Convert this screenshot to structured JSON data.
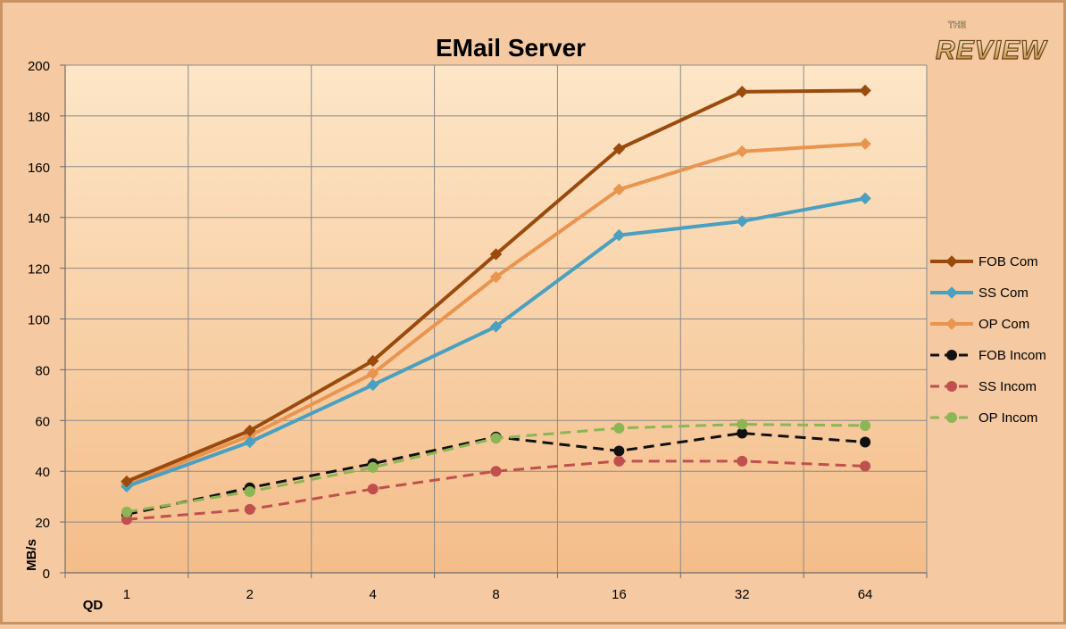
{
  "logo": {
    "top": "THE",
    "main": "REVIEW"
  },
  "chart_data": {
    "type": "line",
    "title": "EMail Server",
    "xlabel": "QD",
    "ylabel": "MB/s",
    "categories": [
      "1",
      "2",
      "4",
      "8",
      "16",
      "32",
      "64"
    ],
    "ylim": [
      0,
      200
    ],
    "yticks": [
      0,
      20,
      40,
      60,
      80,
      100,
      120,
      140,
      160,
      180,
      200
    ],
    "grid": true,
    "legend_position": "right",
    "series": [
      {
        "name": "FOB Com",
        "values": [
          36,
          56,
          83.5,
          125.5,
          167,
          189.5,
          190
        ],
        "color": "#9a4a0c",
        "style": "solid",
        "marker": "diamond"
      },
      {
        "name": "SS Com",
        "values": [
          34,
          51.5,
          74,
          97,
          133,
          138.5,
          147.5
        ],
        "color": "#4aa0c0",
        "style": "solid",
        "marker": "diamond"
      },
      {
        "name": "OP Com",
        "values": [
          35,
          54,
          78.5,
          116.5,
          151,
          166,
          169
        ],
        "color": "#e9944f",
        "style": "solid",
        "marker": "diamond"
      },
      {
        "name": "FOB Incom",
        "values": [
          23,
          33.5,
          43,
          53.5,
          48,
          55,
          51.5
        ],
        "color": "#111111",
        "style": "dashed",
        "marker": "circle"
      },
      {
        "name": "SS Incom",
        "values": [
          21,
          25,
          33,
          40,
          44,
          44,
          42
        ],
        "color": "#c0504d",
        "style": "dashed",
        "marker": "circle"
      },
      {
        "name": "OP Incom",
        "values": [
          24,
          32,
          41.5,
          53,
          57,
          58.5,
          58
        ],
        "color": "#8cb556",
        "style": "dashed",
        "marker": "circle"
      }
    ]
  }
}
